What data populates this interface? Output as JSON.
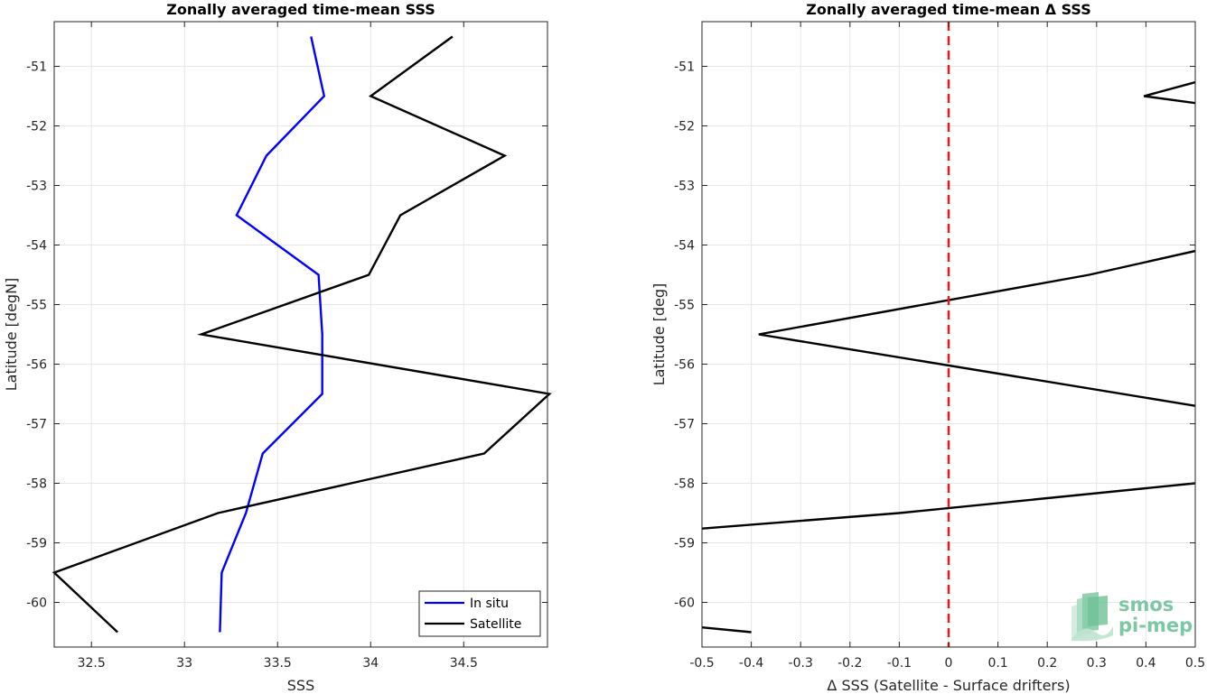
{
  "chart_data": [
    {
      "type": "line",
      "title": "Zonally averaged time-mean SSS",
      "xlabel": "SSS",
      "ylabel": "Latitude [degN]",
      "xlim": [
        32.3,
        34.95
      ],
      "ylim": [
        -60.75,
        -50.25
      ],
      "xticks": [
        32.5,
        33,
        33.5,
        34,
        34.5
      ],
      "yticks": [
        -51,
        -52,
        -53,
        -54,
        -55,
        -56,
        -57,
        -58,
        -59,
        -60
      ],
      "grid": true,
      "legend": "bottom-right",
      "series": [
        {
          "name": "In situ",
          "color": "#0000ff",
          "points": [
            [
              33.68,
              -50.5
            ],
            [
              33.75,
              -51.5
            ],
            [
              33.44,
              -52.5
            ],
            [
              33.28,
              -53.5
            ],
            [
              33.72,
              -54.5
            ],
            [
              33.74,
              -55.5
            ],
            [
              33.74,
              -56.5
            ],
            [
              33.42,
              -57.5
            ],
            [
              33.33,
              -58.5
            ],
            [
              33.2,
              -59.5
            ],
            [
              33.19,
              -60.5
            ]
          ]
        },
        {
          "name": "Satellite",
          "color": "#000000",
          "points": [
            [
              34.44,
              -50.5
            ],
            [
              34.0,
              -51.5
            ],
            [
              34.72,
              -52.5
            ],
            [
              34.16,
              -53.5
            ],
            [
              33.99,
              -54.5
            ],
            [
              33.09,
              -55.5
            ],
            [
              34.96,
              -56.5
            ],
            [
              34.61,
              -57.5
            ],
            [
              33.18,
              -58.5
            ],
            [
              32.3,
              -59.5
            ],
            [
              32.64,
              -60.5
            ]
          ]
        }
      ]
    },
    {
      "type": "line",
      "title": "Zonally averaged time-mean Δ SSS",
      "xlabel": "Δ SSS (Satellite - Surface drifters)",
      "ylabel": "Latitude [deg]",
      "xlim": [
        -0.5,
        0.5
      ],
      "ylim": [
        -60.75,
        -50.25
      ],
      "xticks": [
        -0.5,
        -0.4,
        -0.3,
        -0.2,
        -0.1,
        0,
        0.1,
        0.2,
        0.3,
        0.4,
        0.5
      ],
      "yticks": [
        -51,
        -52,
        -53,
        -54,
        -55,
        -56,
        -57,
        -58,
        -59,
        -60
      ],
      "grid": true,
      "zero_line": {
        "x": 0,
        "color": "#e41a1c",
        "style": "dashed"
      },
      "series": [
        {
          "color": "#000000",
          "points": [
            [
              0.53,
              -51.2
            ],
            [
              0.396,
              -51.5
            ],
            [
              0.53,
              -51.65
            ]
          ]
        },
        {
          "color": "#000000",
          "points": [
            [
              0.5,
              -54.1
            ],
            [
              0.285,
              -54.5
            ],
            [
              -0.385,
              -55.5
            ],
            [
              0.5,
              -56.7
            ]
          ]
        },
        {
          "color": "#000000",
          "points": [
            [
              0.5,
              -58.0
            ],
            [
              -0.1,
              -58.5
            ],
            [
              -0.5,
              -58.76
            ]
          ]
        },
        {
          "color": "#000000",
          "points": [
            [
              -0.5,
              -60.42
            ],
            [
              -0.4,
              -60.5
            ]
          ]
        }
      ]
    }
  ],
  "logo": {
    "line1": "smos",
    "line2": "pi-mep",
    "color": "#7cc7a4"
  }
}
